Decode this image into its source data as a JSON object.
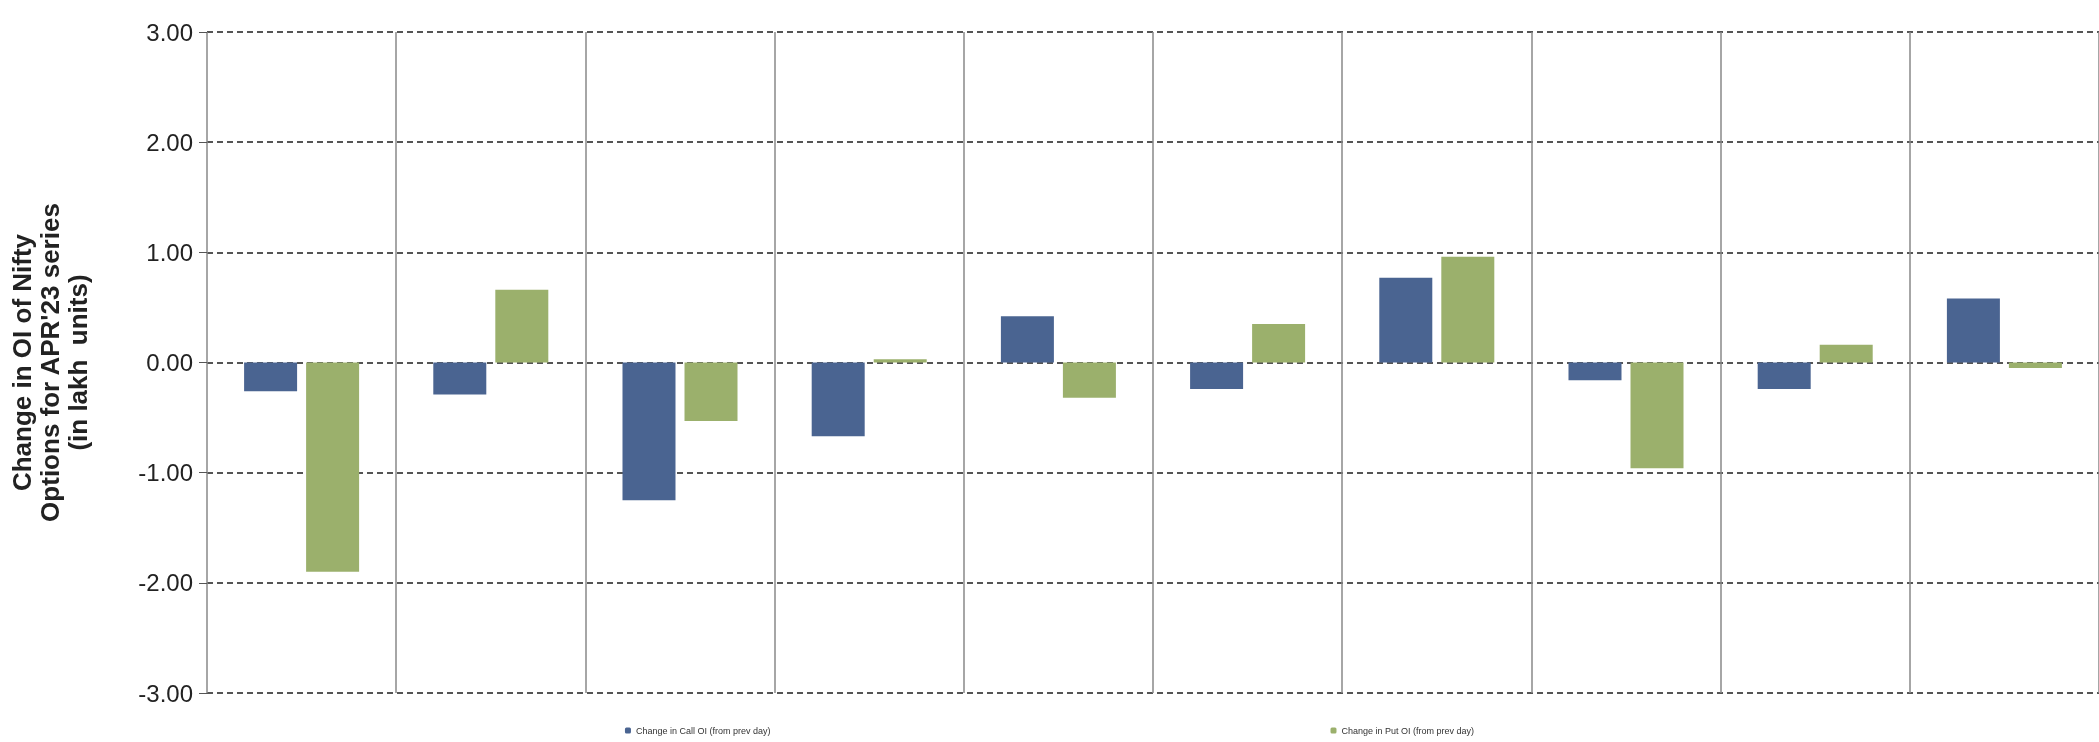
{
  "chart_data": {
    "type": "bar",
    "ylabel": "Change in OI of Nifty\nOptions for APR'23 series\n(in lakh  units)",
    "categories": [
      null,
      null,
      null,
      null,
      null,
      null,
      null,
      null,
      null,
      null
    ],
    "series": [
      {
        "name": "Change in Call OI (from prev day)",
        "color": "#4a6491",
        "values": [
          -0.26,
          -0.29,
          -1.25,
          -0.67,
          0.42,
          -0.24,
          0.77,
          -0.16,
          -0.24,
          0.58
        ]
      },
      {
        "name": "Change in Put OI (from prev day)",
        "color": "#9bb06c",
        "values": [
          -1.9,
          0.66,
          -0.53,
          0.03,
          -0.32,
          0.35,
          0.96,
          -0.96,
          0.16,
          -0.05
        ]
      }
    ],
    "ylim": [
      -3,
      3
    ],
    "yticks": [
      {
        "value": -3,
        "label": "-3.00"
      },
      {
        "value": -2,
        "label": "-2.00"
      },
      {
        "value": -1,
        "label": "-1.00"
      },
      {
        "value": 0,
        "label": "0.00"
      },
      {
        "value": 1,
        "label": "1.00"
      },
      {
        "value": 2,
        "label": "2.00"
      },
      {
        "value": 3,
        "label": "3.00"
      }
    ],
    "grid": true,
    "legend": "bottom"
  }
}
